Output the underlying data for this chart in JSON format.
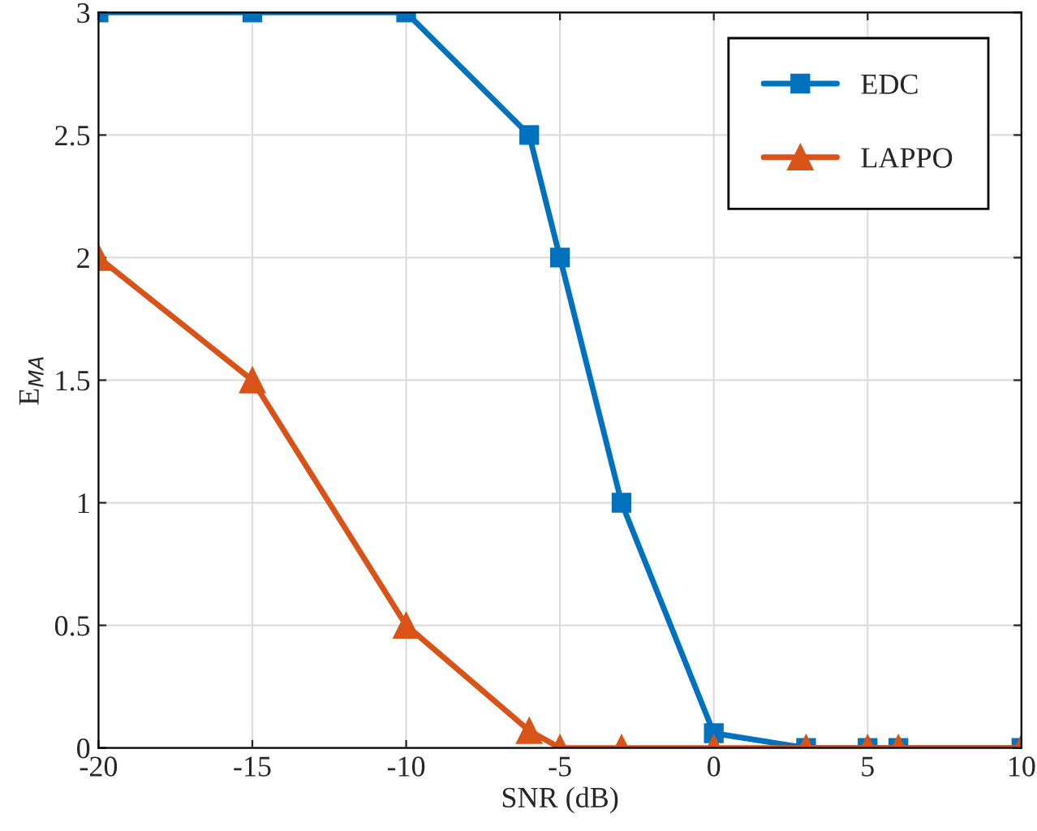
{
  "chart_data": {
    "type": "line",
    "xlabel": "SNR (dB)",
    "ylabel": "E$_{MA}$",
    "x": [
      -20,
      -15,
      -10,
      -6,
      -5,
      -3,
      0,
      3,
      5,
      6,
      10
    ],
    "series": [
      {
        "name": "EDC",
        "color": "#0072bd",
        "marker": "square",
        "values": [
          3,
          3,
          3,
          2.5,
          2,
          1,
          0.06,
          0,
          0,
          0,
          0
        ]
      },
      {
        "name": "LAPPO",
        "color": "#d95319",
        "marker": "triangle",
        "values": [
          2,
          1.5,
          0.5,
          0.07,
          0,
          0,
          0,
          0,
          0,
          0,
          0
        ]
      }
    ],
    "xlim": [
      -20,
      10
    ],
    "xticks": [
      -20,
      -15,
      -10,
      -5,
      0,
      5,
      10
    ],
    "ylim": [
      0,
      3
    ],
    "yticks": [
      0,
      0.5,
      1,
      1.5,
      2,
      2.5,
      3
    ],
    "grid": true,
    "legend": "top right",
    "line_style": "solid"
  }
}
